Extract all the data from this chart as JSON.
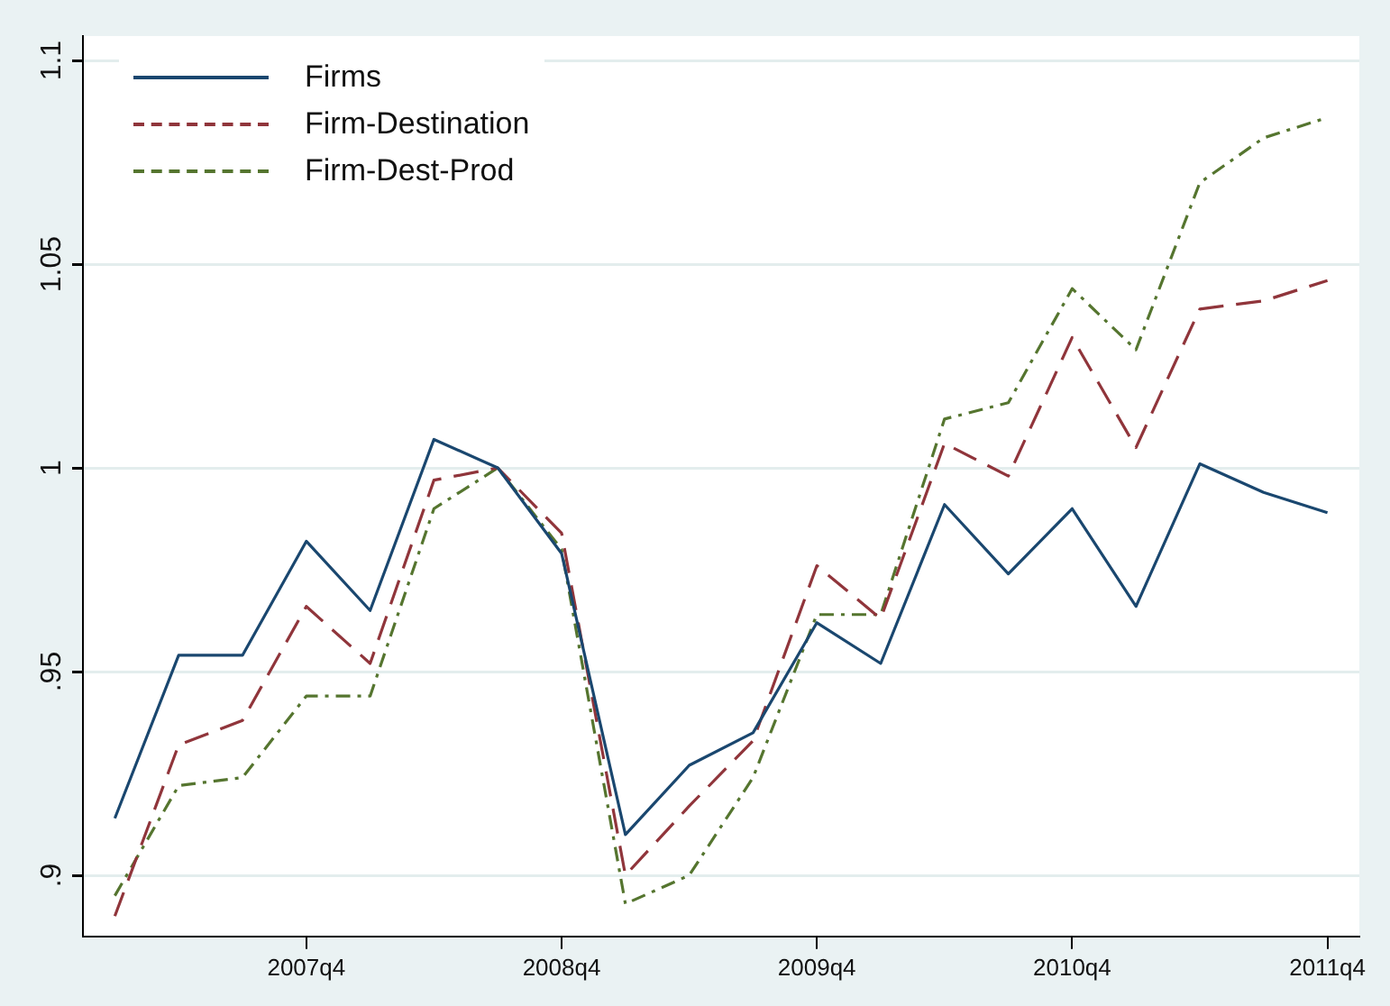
{
  "chart_data": {
    "type": "line",
    "categories": [
      null,
      null,
      null,
      "2007q4",
      null,
      null,
      null,
      "2008q4",
      null,
      null,
      null,
      "2009q4",
      null,
      null,
      null,
      "2010q4",
      null,
      null,
      null,
      "2011q4"
    ],
    "series": [
      {
        "name": "Firms",
        "color": "#1a476f",
        "line_style": "solid",
        "values": [
          0.914,
          0.954,
          0.954,
          0.982,
          0.965,
          1.007,
          1.0,
          0.979,
          0.91,
          0.927,
          0.935,
          0.962,
          0.952,
          0.991,
          0.974,
          0.99,
          0.966,
          1.001,
          0.994,
          0.989
        ]
      },
      {
        "name": "Firm-Destination",
        "color": "#90353b",
        "line_style": "dashed",
        "values": [
          0.89,
          0.932,
          0.938,
          0.966,
          0.952,
          0.997,
          1.0,
          0.984,
          0.9,
          0.917,
          0.933,
          0.976,
          0.963,
          1.006,
          0.998,
          1.032,
          1.005,
          1.039,
          1.041,
          1.046
        ]
      },
      {
        "name": "Firm-Dest-Prod",
        "color": "#55752f",
        "line_style": "dashdot",
        "values": [
          0.895,
          0.922,
          0.924,
          0.944,
          0.944,
          0.99,
          1.0,
          0.98,
          0.893,
          0.9,
          0.924,
          0.964,
          0.964,
          1.012,
          1.016,
          1.044,
          1.029,
          1.07,
          1.081,
          1.086
        ]
      }
    ],
    "ylim": [
      0.885,
      1.106
    ],
    "yticks": [
      {
        "value": 0.9,
        "label": ".9"
      },
      {
        "value": 0.95,
        "label": ".95"
      },
      1,
      1.05,
      1.1
    ],
    "grid": "y",
    "legend": "top left",
    "marker": "none"
  }
}
